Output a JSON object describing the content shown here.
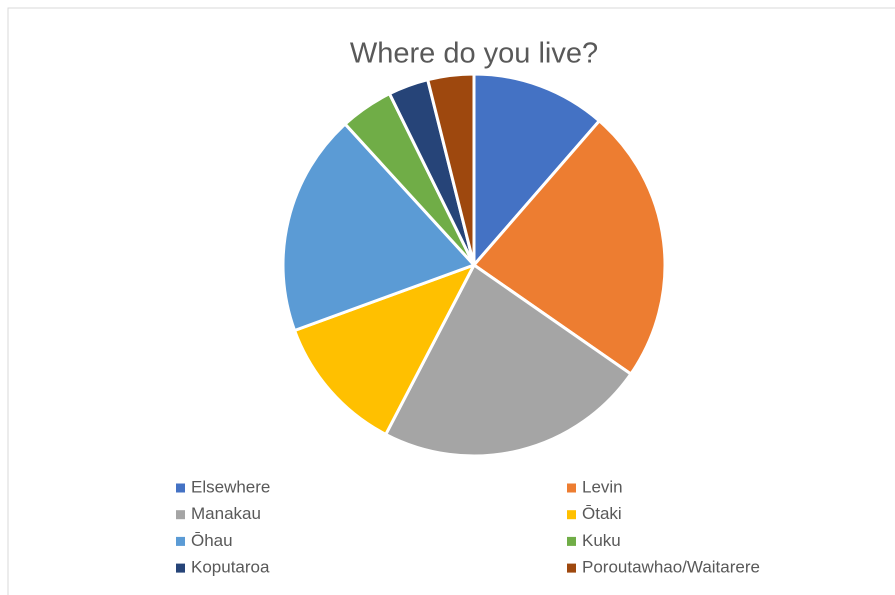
{
  "chart_data": {
    "type": "pie",
    "title": "Where do you live?",
    "categories": [
      "Elsewhere",
      "Levin",
      "Manakau",
      "Ōtaki",
      "Ōhau",
      "Kuku",
      "Koputaroa",
      "Poroutawhao/Waitarere"
    ],
    "values": [
      11.4,
      23.3,
      23,
      11.8,
      18.8,
      4.5,
      3.4,
      3.9
    ],
    "colors": [
      "#4472c4",
      "#ed7d31",
      "#a5a5a5",
      "#ffc000",
      "#5b9bd5",
      "#70ad47",
      "#264478",
      "#9e480e"
    ],
    "legend": "bottom"
  }
}
